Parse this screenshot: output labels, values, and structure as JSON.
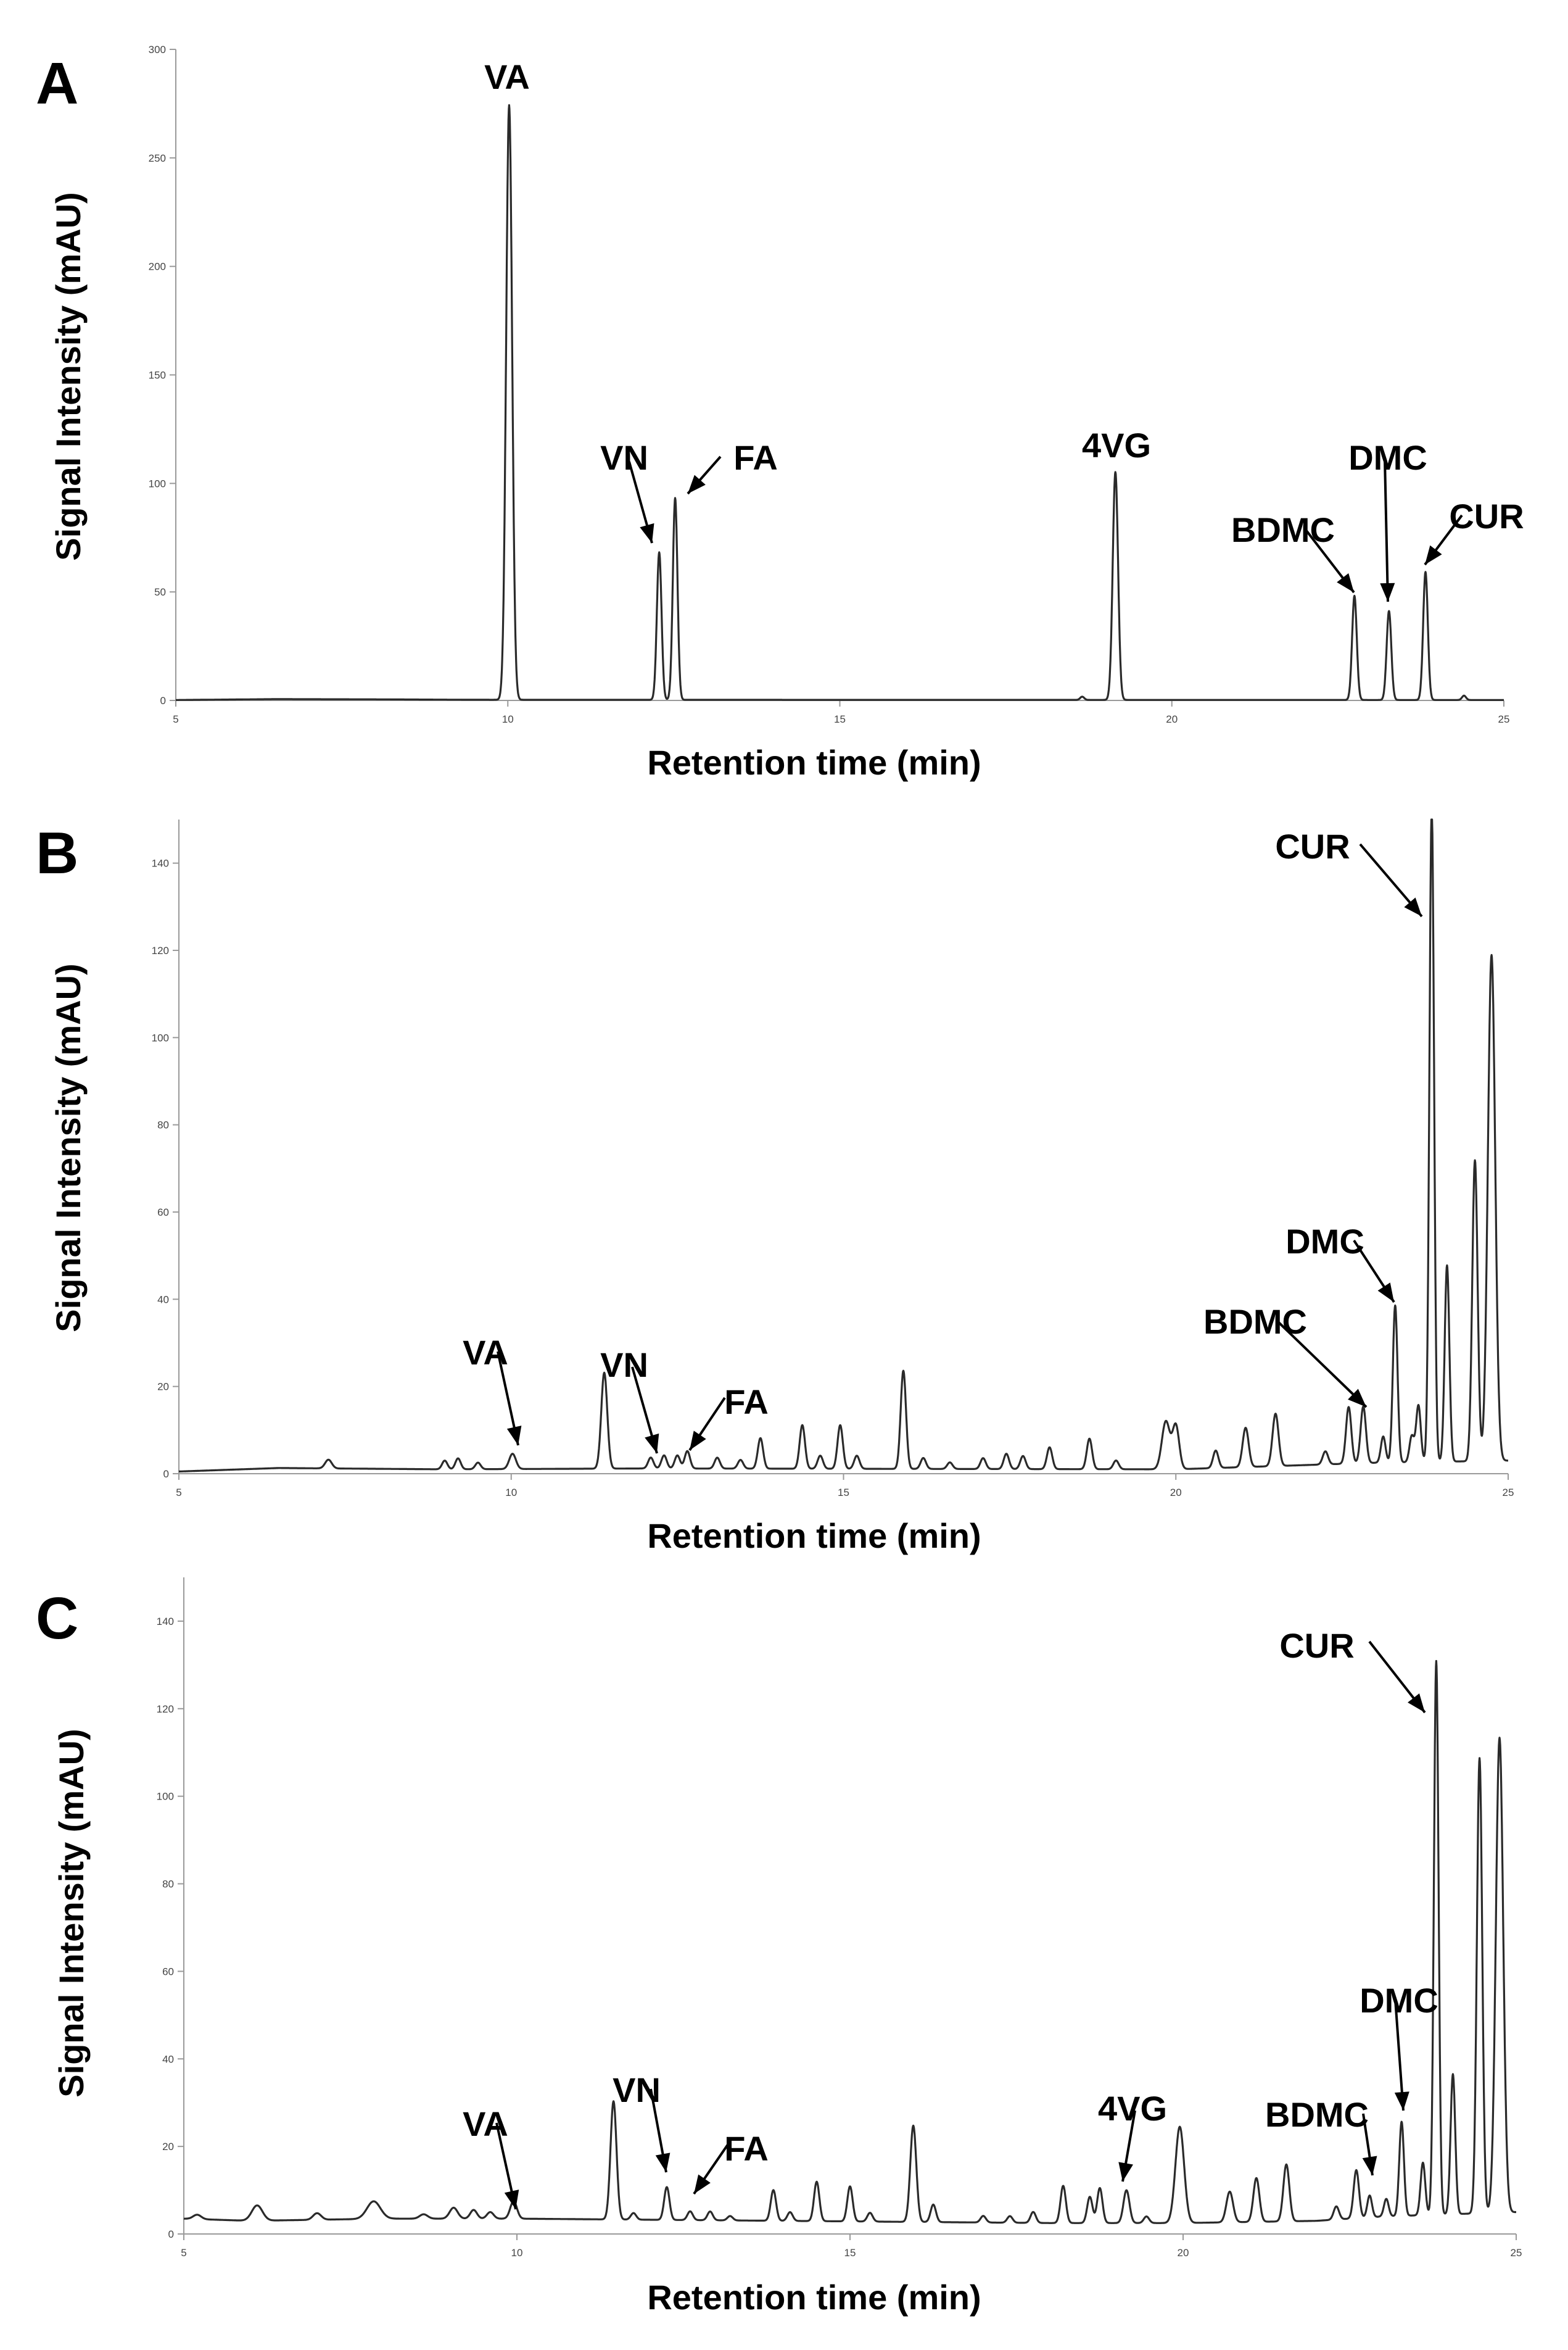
{
  "chart_data": [
    {
      "panel": "A",
      "type": "line",
      "xlabel": "Retention time (min)",
      "ylabel": "Signal Intensity (mAU)",
      "xlim": [
        5,
        25
      ],
      "ylim": [
        0,
        300
      ],
      "xticks": [
        5,
        10,
        15,
        20,
        25
      ],
      "yticks": [
        0,
        50,
        100,
        150,
        200,
        250,
        300
      ],
      "baseline": [
        [
          5,
          0.2
        ],
        [
          6.5,
          0.6
        ],
        [
          8.0,
          0.5
        ],
        [
          9.5,
          0.3
        ],
        [
          25,
          0.2
        ]
      ],
      "peaks": [
        {
          "x": 10.02,
          "y": 274,
          "w": 0.045
        },
        {
          "x": 12.28,
          "y": 68,
          "w": 0.035
        },
        {
          "x": 12.52,
          "y": 93,
          "w": 0.035
        },
        {
          "x": 18.65,
          "y": 1.5,
          "w": 0.03
        },
        {
          "x": 19.15,
          "y": 105,
          "w": 0.04
        },
        {
          "x": 22.75,
          "y": 48,
          "w": 0.035
        },
        {
          "x": 23.27,
          "y": 41,
          "w": 0.035
        },
        {
          "x": 23.82,
          "y": 59,
          "w": 0.035
        },
        {
          "x": 24.4,
          "y": 2,
          "w": 0.03
        }
      ],
      "annotations": [
        {
          "label": "VA",
          "x": 10.02,
          "y": 274,
          "arrow": false
        },
        {
          "label": "VN",
          "x": 12.28,
          "y": 68,
          "arrow": true
        },
        {
          "label": "FA",
          "x": 12.52,
          "y": 93,
          "arrow": true
        },
        {
          "label": "4VG",
          "x": 19.15,
          "y": 105,
          "arrow": false
        },
        {
          "label": "BDMC",
          "x": 22.75,
          "y": 48,
          "arrow": true
        },
        {
          "label": "DMC",
          "x": 23.27,
          "y": 41,
          "arrow": true
        },
        {
          "label": "CUR",
          "x": 23.82,
          "y": 59,
          "arrow": true
        }
      ]
    },
    {
      "panel": "B",
      "type": "line",
      "xlabel": "Retention time (min)",
      "ylabel": "Signal Intensity (mAU)",
      "xlim": [
        5,
        25
      ],
      "ylim": [
        0,
        150
      ],
      "xticks": [
        5,
        10,
        15,
        20,
        25
      ],
      "yticks": [
        0,
        20,
        40,
        60,
        80,
        100,
        120,
        140
      ],
      "baseline": [
        [
          5,
          0.5
        ],
        [
          6.5,
          1.3
        ],
        [
          9,
          1.0
        ],
        [
          12,
          1.2
        ],
        [
          20,
          1.0
        ],
        [
          23,
          2.5
        ],
        [
          25,
          3.0
        ]
      ],
      "peaks": [
        {
          "x": 7.25,
          "y": 2.0,
          "w": 0.05
        },
        {
          "x": 9.0,
          "y": 2.0,
          "w": 0.04
        },
        {
          "x": 9.2,
          "y": 2.5,
          "w": 0.04
        },
        {
          "x": 9.5,
          "y": 1.5,
          "w": 0.04
        },
        {
          "x": 10.02,
          "y": 3.5,
          "w": 0.05
        },
        {
          "x": 11.4,
          "y": 22,
          "w": 0.045
        },
        {
          "x": 12.1,
          "y": 2.5,
          "w": 0.04
        },
        {
          "x": 12.3,
          "y": 3.0,
          "w": 0.04
        },
        {
          "x": 12.5,
          "y": 3.0,
          "w": 0.04
        },
        {
          "x": 12.65,
          "y": 4.0,
          "w": 0.04
        },
        {
          "x": 13.1,
          "y": 2.5,
          "w": 0.04
        },
        {
          "x": 13.45,
          "y": 2.0,
          "w": 0.04
        },
        {
          "x": 13.75,
          "y": 7,
          "w": 0.04
        },
        {
          "x": 14.38,
          "y": 10,
          "w": 0.04
        },
        {
          "x": 14.65,
          "y": 3,
          "w": 0.04
        },
        {
          "x": 14.95,
          "y": 10,
          "w": 0.04
        },
        {
          "x": 15.2,
          "y": 3,
          "w": 0.04
        },
        {
          "x": 15.9,
          "y": 22.5,
          "w": 0.04
        },
        {
          "x": 16.2,
          "y": 2.5,
          "w": 0.04
        },
        {
          "x": 16.6,
          "y": 1.5,
          "w": 0.04
        },
        {
          "x": 17.1,
          "y": 2.5,
          "w": 0.04
        },
        {
          "x": 17.45,
          "y": 3.5,
          "w": 0.04
        },
        {
          "x": 17.7,
          "y": 3.0,
          "w": 0.04
        },
        {
          "x": 18.1,
          "y": 5.0,
          "w": 0.04
        },
        {
          "x": 18.7,
          "y": 7.0,
          "w": 0.04
        },
        {
          "x": 19.1,
          "y": 2.0,
          "w": 0.04
        },
        {
          "x": 19.85,
          "y": 11,
          "w": 0.06
        },
        {
          "x": 20.0,
          "y": 10,
          "w": 0.05
        },
        {
          "x": 20.6,
          "y": 4.0,
          "w": 0.04
        },
        {
          "x": 21.05,
          "y": 9.0,
          "w": 0.045
        },
        {
          "x": 21.5,
          "y": 12.0,
          "w": 0.045
        },
        {
          "x": 22.25,
          "y": 3.0,
          "w": 0.04
        },
        {
          "x": 22.6,
          "y": 13,
          "w": 0.04
        },
        {
          "x": 22.82,
          "y": 13,
          "w": 0.04
        },
        {
          "x": 23.12,
          "y": 6,
          "w": 0.035
        },
        {
          "x": 23.3,
          "y": 36,
          "w": 0.035
        },
        {
          "x": 23.55,
          "y": 6,
          "w": 0.035
        },
        {
          "x": 23.65,
          "y": 13,
          "w": 0.035
        },
        {
          "x": 23.85,
          "y": 150,
          "w": 0.035
        },
        {
          "x": 24.08,
          "y": 45,
          "w": 0.035
        },
        {
          "x": 24.5,
          "y": 69,
          "w": 0.04
        },
        {
          "x": 24.75,
          "y": 116,
          "w": 0.055
        }
      ],
      "annotations": [
        {
          "label": "VA",
          "x": 10.02,
          "y": 4,
          "arrow": true
        },
        {
          "label": "VN",
          "x": 12.2,
          "y": 3,
          "arrow": true
        },
        {
          "label": "FA",
          "x": 12.6,
          "y": 4,
          "arrow": true
        },
        {
          "label": "BDMC",
          "x": 22.82,
          "y": 14,
          "arrow": true
        },
        {
          "label": "DMC",
          "x": 23.3,
          "y": 38,
          "arrow": true
        },
        {
          "label": "CUR",
          "x": 23.85,
          "y": 126,
          "arrow": true
        }
      ]
    },
    {
      "panel": "C",
      "type": "line",
      "xlabel": "Retention time (min)",
      "ylabel": "Signal Intensity (mAU)",
      "xlim": [
        5,
        25
      ],
      "ylim": [
        0,
        150
      ],
      "xticks": [
        5,
        10,
        15,
        20,
        25
      ],
      "yticks": [
        0,
        20,
        40,
        60,
        80,
        100,
        120,
        140
      ],
      "baseline": [
        [
          5,
          3.5
        ],
        [
          6,
          3.0
        ],
        [
          8,
          3.5
        ],
        [
          10,
          3.5
        ],
        [
          14,
          3.0
        ],
        [
          18,
          2.5
        ],
        [
          20,
          2.5
        ],
        [
          22,
          3.0
        ],
        [
          23,
          4.0
        ],
        [
          25,
          5.0
        ]
      ],
      "peaks": [
        {
          "x": 5.2,
          "y": 1.0,
          "w": 0.06
        },
        {
          "x": 6.1,
          "y": 3.5,
          "w": 0.08
        },
        {
          "x": 7.0,
          "y": 1.5,
          "w": 0.06
        },
        {
          "x": 7.85,
          "y": 4.0,
          "w": 0.1
        },
        {
          "x": 8.6,
          "y": 1.0,
          "w": 0.06
        },
        {
          "x": 9.05,
          "y": 2.5,
          "w": 0.06
        },
        {
          "x": 9.35,
          "y": 2.0,
          "w": 0.05
        },
        {
          "x": 9.6,
          "y": 1.5,
          "w": 0.05
        },
        {
          "x": 9.95,
          "y": 4.0,
          "w": 0.05
        },
        {
          "x": 11.45,
          "y": 27,
          "w": 0.045
        },
        {
          "x": 11.75,
          "y": 1.5,
          "w": 0.04
        },
        {
          "x": 12.25,
          "y": 7.5,
          "w": 0.04
        },
        {
          "x": 12.6,
          "y": 2.0,
          "w": 0.04
        },
        {
          "x": 12.9,
          "y": 2.0,
          "w": 0.04
        },
        {
          "x": 13.2,
          "y": 1.0,
          "w": 0.04
        },
        {
          "x": 13.85,
          "y": 7.0,
          "w": 0.04
        },
        {
          "x": 14.1,
          "y": 2.0,
          "w": 0.04
        },
        {
          "x": 14.5,
          "y": 9.0,
          "w": 0.04
        },
        {
          "x": 15.0,
          "y": 8.0,
          "w": 0.04
        },
        {
          "x": 15.3,
          "y": 2.0,
          "w": 0.04
        },
        {
          "x": 15.95,
          "y": 22,
          "w": 0.045
        },
        {
          "x": 16.25,
          "y": 4.0,
          "w": 0.04
        },
        {
          "x": 17.0,
          "y": 1.5,
          "w": 0.04
        },
        {
          "x": 17.4,
          "y": 1.5,
          "w": 0.04
        },
        {
          "x": 17.75,
          "y": 2.5,
          "w": 0.04
        },
        {
          "x": 18.2,
          "y": 8.5,
          "w": 0.04
        },
        {
          "x": 18.6,
          "y": 6.0,
          "w": 0.04
        },
        {
          "x": 18.75,
          "y": 8.0,
          "w": 0.04
        },
        {
          "x": 19.15,
          "y": 7.5,
          "w": 0.045
        },
        {
          "x": 19.45,
          "y": 1.5,
          "w": 0.04
        },
        {
          "x": 19.95,
          "y": 22,
          "w": 0.065
        },
        {
          "x": 20.7,
          "y": 7.0,
          "w": 0.05
        },
        {
          "x": 21.1,
          "y": 10,
          "w": 0.045
        },
        {
          "x": 21.55,
          "y": 13,
          "w": 0.045
        },
        {
          "x": 22.3,
          "y": 3.0,
          "w": 0.04
        },
        {
          "x": 22.6,
          "y": 11,
          "w": 0.04
        },
        {
          "x": 22.8,
          "y": 5.0,
          "w": 0.035
        },
        {
          "x": 23.05,
          "y": 4.0,
          "w": 0.035
        },
        {
          "x": 23.28,
          "y": 21.5,
          "w": 0.035
        },
        {
          "x": 23.6,
          "y": 12,
          "w": 0.035
        },
        {
          "x": 23.8,
          "y": 126.5,
          "w": 0.035
        },
        {
          "x": 24.05,
          "y": 32,
          "w": 0.035
        },
        {
          "x": 24.45,
          "y": 104,
          "w": 0.04
        },
        {
          "x": 24.75,
          "y": 108.5,
          "w": 0.055
        }
      ],
      "annotations": [
        {
          "label": "VA",
          "x": 9.95,
          "y": 7,
          "arrow": true
        },
        {
          "label": "VN",
          "x": 12.25,
          "y": 10,
          "arrow": true
        },
        {
          "label": "FA",
          "x": 12.6,
          "y": 5,
          "arrow": true
        },
        {
          "label": "4VG",
          "x": 19.15,
          "y": 10,
          "arrow": true
        },
        {
          "label": "BDMC",
          "x": 22.8,
          "y": 8,
          "arrow": true
        },
        {
          "label": "DMC",
          "x": 23.28,
          "y": 24,
          "arrow": true
        },
        {
          "label": "CUR",
          "x": 23.8,
          "y": 118,
          "arrow": true
        }
      ]
    }
  ]
}
